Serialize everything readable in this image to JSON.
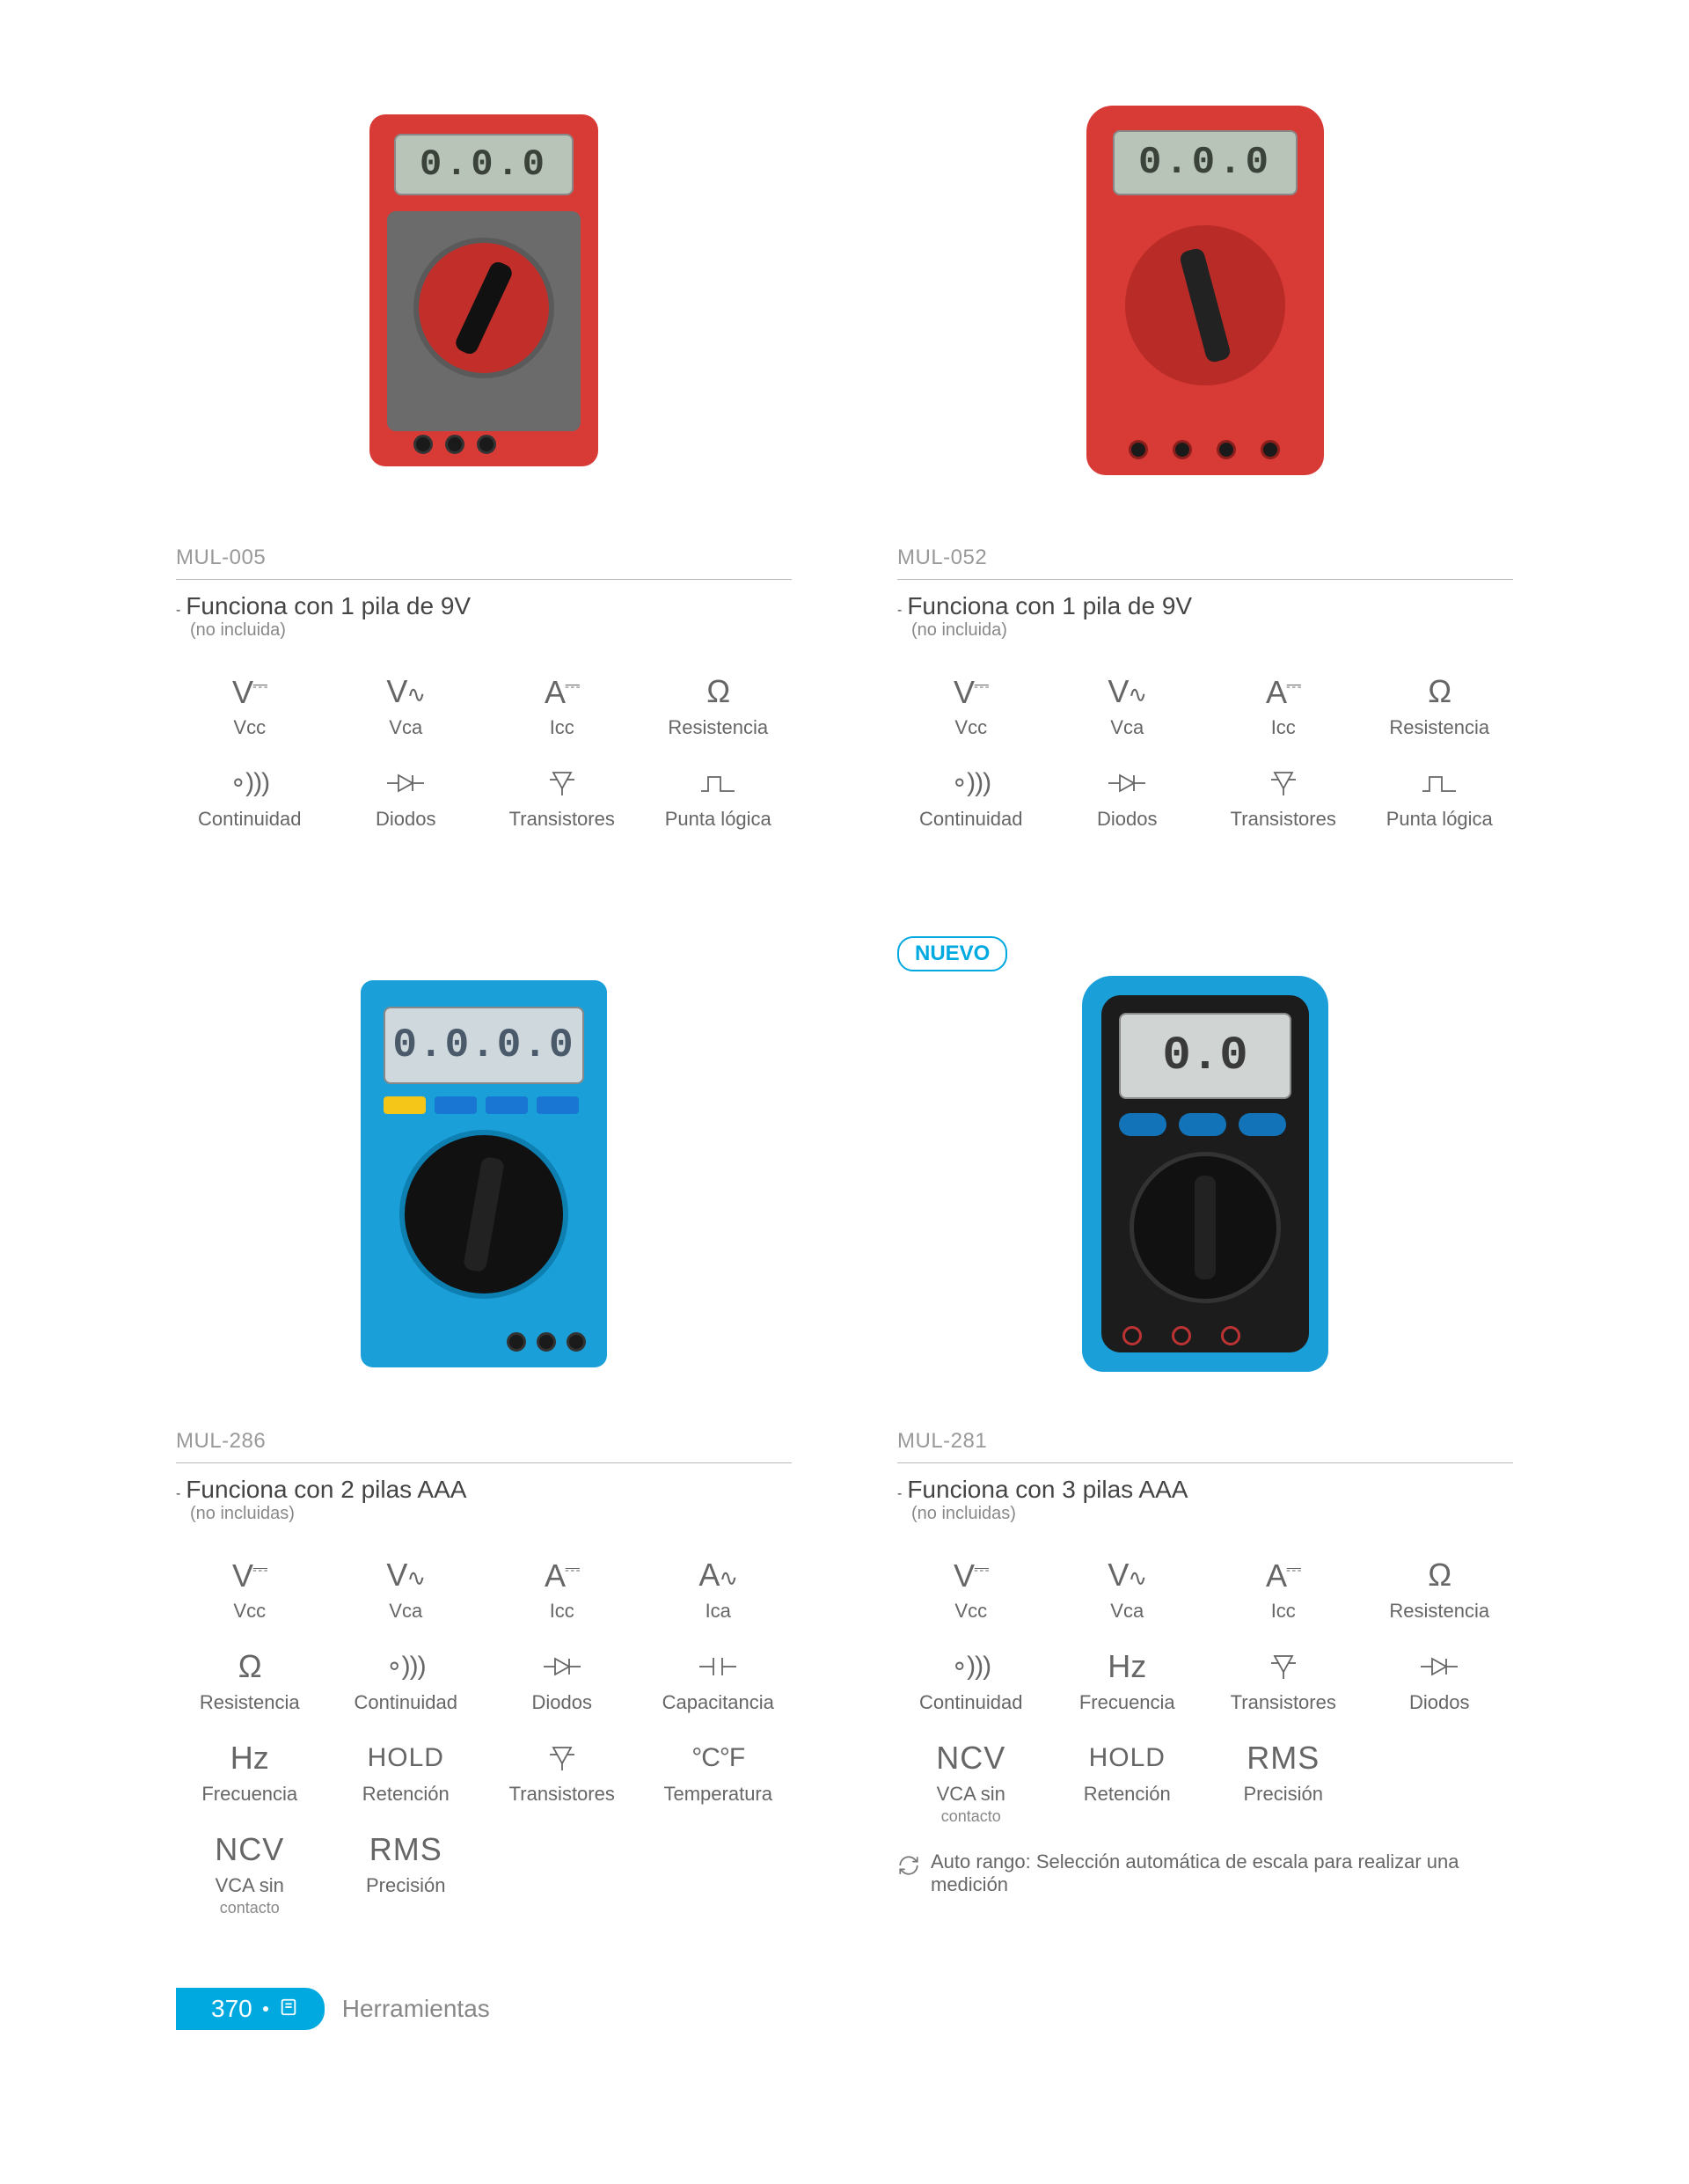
{
  "colors": {
    "brand_blue": "#00a9e0",
    "meter_red": "#d83a36",
    "meter_red_dark": "#b82b27",
    "meter_blue": "#1a9fd9",
    "lcd_green": "#b9c4b8",
    "lcd_gray": "#cfd8dc",
    "text_gray": "#666666",
    "text_light": "#999999",
    "divider": "#bbbbbb"
  },
  "badges": {
    "nuevo": "NUEVO"
  },
  "icons": {
    "vcc": "V⎓",
    "vca": "V∿",
    "icc": "A⎓",
    "ica": "A∿",
    "resistencia": "Ω",
    "continuidad": "∘)))",
    "diodos": "diode",
    "transistores": "transistor",
    "punta_logica": "pulse",
    "capacitancia": "capacitor",
    "frecuencia": "Hz",
    "retencion": "HOLD",
    "temperatura": "°C°F",
    "ncv": "NCV",
    "rms": "RMS",
    "autorango": "autorange"
  },
  "feature_labels": {
    "vcc": "Vcc",
    "vca": "Vca",
    "icc": "Icc",
    "ica": "Ica",
    "resistencia": "Resistencia",
    "continuidad": "Continuidad",
    "diodos": "Diodos",
    "transistores": "Transistores",
    "punta_logica": "Punta lógica",
    "capacitancia": "Capacitancia",
    "frecuencia": "Frecuencia",
    "retencion": "Retención",
    "temperatura": "Temperatura",
    "precision": "Precisión",
    "ncv_l1": "VCA sin",
    "ncv_l2": "contacto"
  },
  "products": [
    {
      "sku": "MUL-005",
      "display": "0.0.0",
      "note_main": "Funciona con 1 pila de 9V",
      "note_sub": "(no incluida)",
      "features": [
        "vcc",
        "vca",
        "icc",
        "resistencia",
        "continuidad",
        "diodos",
        "transistores",
        "punta_logica"
      ]
    },
    {
      "sku": "MUL-052",
      "display": "0.0.0",
      "note_main": "Funciona con 1 pila de 9V",
      "note_sub": "(no incluida)",
      "features": [
        "vcc",
        "vca",
        "icc",
        "resistencia",
        "continuidad",
        "diodos",
        "transistores",
        "punta_logica"
      ]
    },
    {
      "sku": "MUL-286",
      "display": "0.0.0.0",
      "note_main": "Funciona con 2 pilas AAA",
      "note_sub": "(no incluidas)",
      "features": [
        "vcc",
        "vca",
        "icc",
        "ica",
        "resistencia",
        "continuidad",
        "diodos",
        "capacitancia",
        "frecuencia",
        "retencion",
        "transistores",
        "temperatura",
        "ncv",
        "rms"
      ]
    },
    {
      "sku": "MUL-281",
      "display": "0.0",
      "badge": "nuevo",
      "note_main": "Funciona con 3 pilas AAA",
      "note_sub": "(no incluidas)",
      "features": [
        "vcc",
        "vca",
        "icc",
        "resistencia",
        "continuidad",
        "frecuencia",
        "transistores",
        "diodos",
        "ncv",
        "retencion",
        "rms"
      ],
      "extra_note": "Auto rango: Selección automática de escala para realizar una medición"
    }
  ],
  "footer": {
    "page_number": "370",
    "section": "Herramientas"
  },
  "typography": {
    "sku_fontsize": 24,
    "note_main_fontsize": 28,
    "note_sub_fontsize": 20,
    "feature_icon_fontsize": 36,
    "feature_label_fontsize": 22,
    "footer_fontsize": 28
  }
}
